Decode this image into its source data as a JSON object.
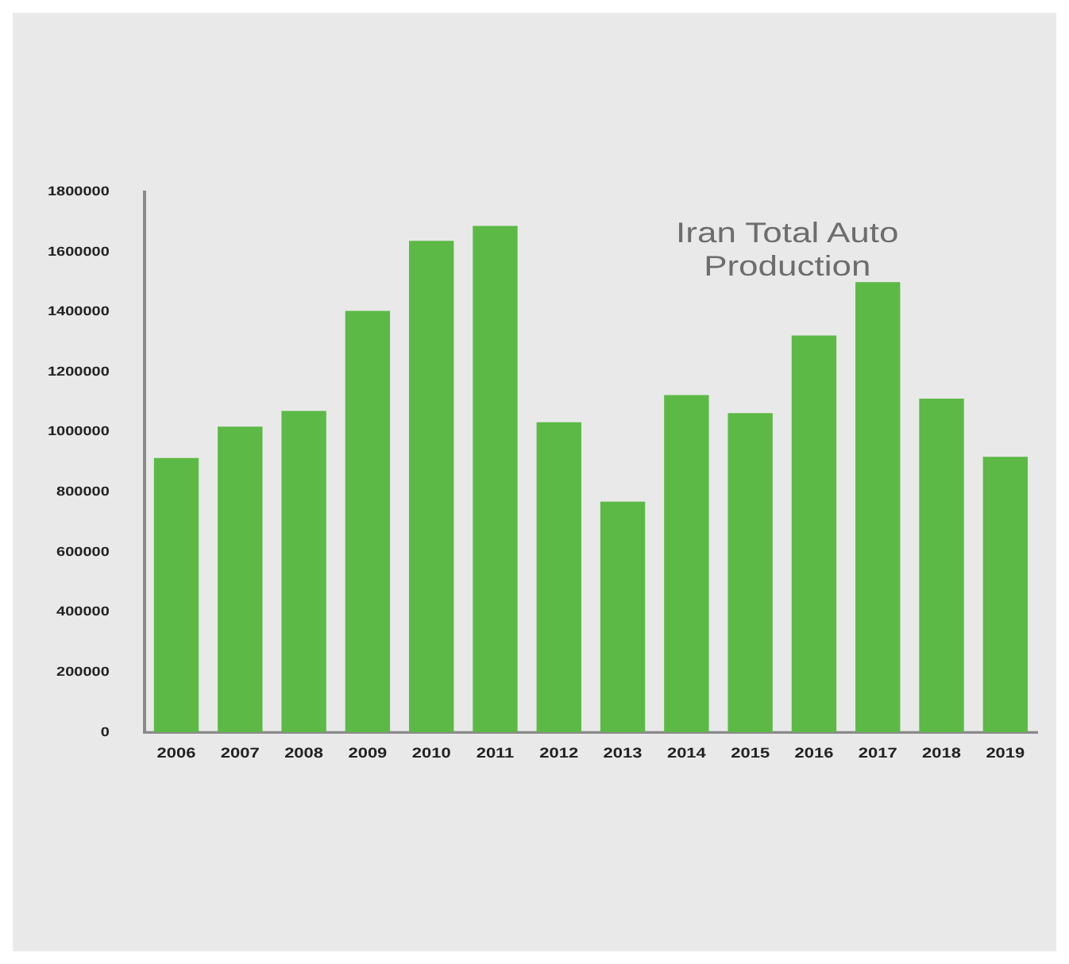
{
  "chart_data": {
    "type": "bar",
    "title": "Iran Total Auto Production",
    "categories": [
      "2006",
      "2007",
      "2008",
      "2009",
      "2010",
      "2011",
      "2012",
      "2013",
      "2014",
      "2015",
      "2016",
      "2017",
      "2018",
      "2019"
    ],
    "values": [
      913000,
      1018000,
      1070000,
      1403000,
      1637000,
      1686000,
      1032000,
      768000,
      1123000,
      1063000,
      1321000,
      1499000,
      1111000,
      917000
    ],
    "color": "#5cb946",
    "ylim": [
      0,
      1800000
    ],
    "yticks": [
      0,
      200000,
      400000,
      600000,
      800000,
      1000000,
      1200000,
      1400000,
      1600000,
      1800000
    ],
    "grid": false,
    "legend": false
  }
}
